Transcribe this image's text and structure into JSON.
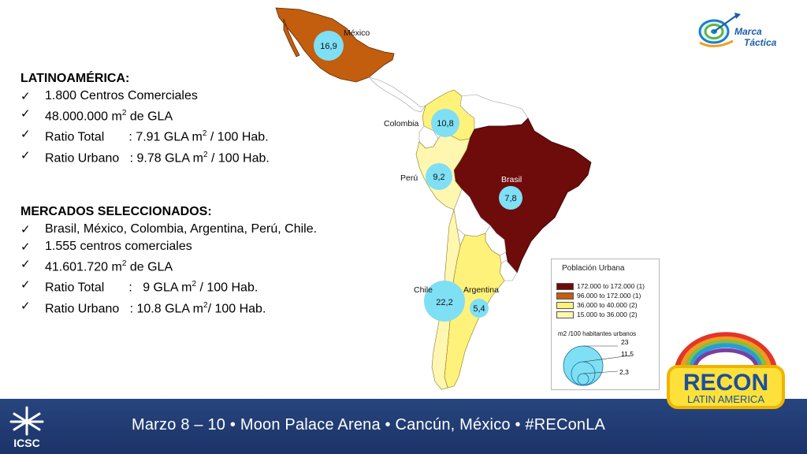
{
  "latam": {
    "heading": "LATINOAMÉRICA:",
    "items": [
      {
        "pre": "1.800 Centros Comerciales",
        "sup": "",
        "post": ""
      },
      {
        "pre": "48.000.000 m",
        "sup": "2",
        "post": " de GLA"
      },
      {
        "pre": "Ratio Total       : 7.91 GLA m",
        "sup": "2",
        "post": " / 100 Hab."
      },
      {
        "pre": "Ratio Urbano   : 9.78 GLA m",
        "sup": "2",
        "post": " / 100 Hab."
      }
    ]
  },
  "markets": {
    "heading": "MERCADOS SELECCIONADOS:",
    "items": [
      {
        "pre": "Brasil, México, Colombia, Argentina, Perú, Chile.",
        "sup": "",
        "post": ""
      },
      {
        "pre": "1.555 centros comerciales",
        "sup": "",
        "post": ""
      },
      {
        "pre": "41.601.720 m",
        "sup": "2",
        "post": " de GLA"
      },
      {
        "pre": "Ratio Total       :   9 GLA m",
        "sup": "2",
        "post": " / 100 Hab."
      },
      {
        "pre": "Ratio Urbano   : 10.8 GLA m",
        "sup": "2",
        "post": "/ 100 Hab."
      }
    ]
  },
  "check_glyph": "✓",
  "map": {
    "countries": [
      {
        "name": "México",
        "value": "16,9",
        "fill": "#c25e0e"
      },
      {
        "name": "Colombia",
        "value": "10,8",
        "fill": "#fff27a"
      },
      {
        "name": "Perú",
        "value": "9,2",
        "fill": "#fff7b0"
      },
      {
        "name": "Brasil",
        "value": "7,8",
        "fill": "#6e0b0b"
      },
      {
        "name": "Chile",
        "value": "22,2",
        "fill": "#fff7b0"
      },
      {
        "name": "Argentina",
        "value": "5,4",
        "fill": "#fff27a"
      }
    ],
    "bubble_color": "#7fdff5"
  },
  "legend": {
    "title": "Población Urbana",
    "rows": [
      {
        "label": "172.000 to 172.000  (1)",
        "color": "#6e0b0b"
      },
      {
        "label": "96.000 to 172.000  (1)",
        "color": "#c25e0e"
      },
      {
        "label": "36.000 to   40.000  (2)",
        "color": "#fff27a"
      },
      {
        "label": "15.000 to   36.000  (2)",
        "color": "#fff7b0"
      }
    ],
    "size_title": "m2 /100 habitantes urbanos",
    "sizes": [
      "23",
      "11,5",
      "2,3"
    ]
  },
  "logo": {
    "line1": "Marca",
    "line2": "Táctica"
  },
  "footer": {
    "org": "ICSC",
    "text": "Marzo 8 – 10 • Moon Palace Arena • Cancún, México • #REConLA"
  },
  "recon": {
    "title": "RECON",
    "subtitle": "LATIN AMERICA"
  }
}
